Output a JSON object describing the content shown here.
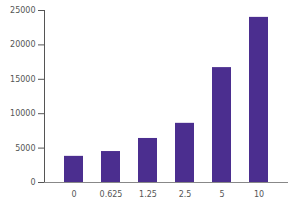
{
  "chart_data": {
    "type": "bar",
    "categories": [
      "0",
      "0.625",
      "1.25",
      "2.5",
      "5",
      "10"
    ],
    "values": [
      3800,
      4500,
      6400,
      8600,
      16700,
      24000
    ],
    "color": "#4b2e8f",
    "ylim": [
      0,
      25000
    ],
    "yticks": [
      0,
      5000,
      10000,
      15000,
      20000,
      25000
    ],
    "grid": false
  }
}
